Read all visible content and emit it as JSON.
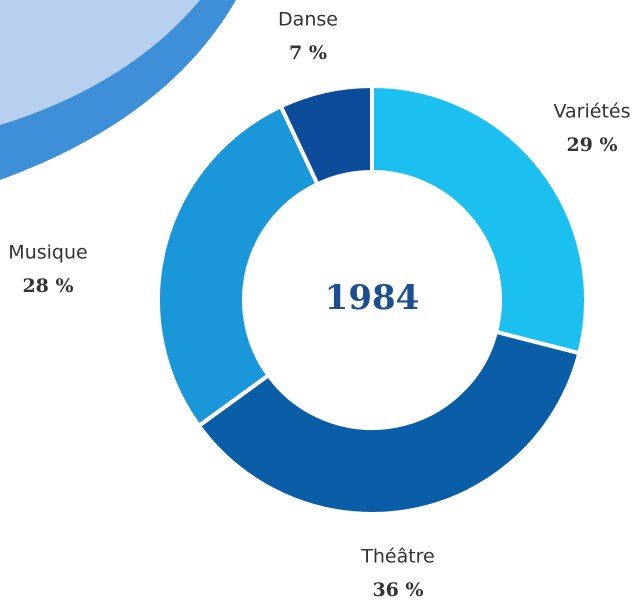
{
  "chart_data": {
    "type": "donut",
    "center_label": "1984",
    "categories": [
      "Variétés",
      "Théâtre",
      "Musique",
      "Danse"
    ],
    "values": [
      29,
      36,
      28,
      7
    ],
    "value_labels": [
      "29 %",
      "36 %",
      "28 %",
      "7 %"
    ],
    "colors": [
      "#1cc0f0",
      "#0a5ea8",
      "#1a97d9",
      "#0d4b9b"
    ]
  }
}
